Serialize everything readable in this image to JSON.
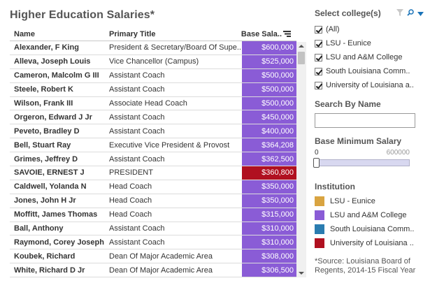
{
  "title": "Higher Education Salaries*",
  "table": {
    "headers": {
      "name": "Name",
      "title": "Primary Title",
      "salary": "Base Sala.."
    },
    "rows": [
      {
        "name": "Alexander, F King",
        "title": "President & Secretary/Board Of Supe..",
        "salary": "$600,000",
        "color": "#8a5cd6"
      },
      {
        "name": "Alleva, Joseph Louis",
        "title": "Vice Chancellor (Campus)",
        "salary": "$525,000",
        "color": "#8a5cd6"
      },
      {
        "name": "Cameron, Malcolm G III",
        "title": "Assistant Coach",
        "salary": "$500,000",
        "color": "#8a5cd6"
      },
      {
        "name": "Steele, Robert K",
        "title": "Assistant Coach",
        "salary": "$500,000",
        "color": "#8a5cd6"
      },
      {
        "name": "Wilson, Frank  III",
        "title": "Associate Head Coach",
        "salary": "$500,000",
        "color": "#8a5cd6"
      },
      {
        "name": "Orgeron, Edward J Jr",
        "title": "Assistant Coach",
        "salary": "$450,000",
        "color": "#8a5cd6"
      },
      {
        "name": "Peveto, Bradley D",
        "title": "Assistant Coach",
        "salary": "$400,000",
        "color": "#8a5cd6"
      },
      {
        "name": "Bell, Stuart Ray",
        "title": "Executive Vice President & Provost",
        "salary": "$364,208",
        "color": "#8a5cd6"
      },
      {
        "name": "Grimes, Jeffrey D",
        "title": "Assistant Coach",
        "salary": "$362,500",
        "color": "#8a5cd6"
      },
      {
        "name": "SAVOIE, ERNEST J",
        "title": "PRESIDENT",
        "salary": "$360,800",
        "color": "#b01020"
      },
      {
        "name": "Caldwell, Yolanda N",
        "title": "Head Coach",
        "salary": "$350,000",
        "color": "#8a5cd6"
      },
      {
        "name": "Jones, John H Jr",
        "title": "Head Coach",
        "salary": "$350,000",
        "color": "#8a5cd6"
      },
      {
        "name": "Moffitt, James Thomas",
        "title": "Head Coach",
        "salary": "$315,000",
        "color": "#8a5cd6"
      },
      {
        "name": "Ball, Anthony",
        "title": "Assistant Coach",
        "salary": "$310,000",
        "color": "#8a5cd6"
      },
      {
        "name": "Raymond, Corey Joseph",
        "title": "Assistant Coach",
        "salary": "$310,000",
        "color": "#8a5cd6"
      },
      {
        "name": "Koubek, Richard",
        "title": "Dean Of Major Academic Area",
        "salary": "$308,000",
        "color": "#8a5cd6"
      },
      {
        "name": "White, Richard D Jr",
        "title": "Dean Of Major Academic Area",
        "salary": "$306,500",
        "color": "#8a5cd6"
      }
    ]
  },
  "filter": {
    "title": "Select college(s)",
    "items": [
      "(All)",
      "LSU - Eunice",
      "LSU and A&M College",
      "South Louisiana Comm..",
      "University of Louisiana a.."
    ]
  },
  "search": {
    "title": "Search By Name",
    "placeholder": ""
  },
  "range": {
    "title": "Base Minimum Salary",
    "min_label": "0",
    "max_label": "600000",
    "value": 0
  },
  "legend": {
    "title": "Institution",
    "items": [
      {
        "label": "LSU - Eunice",
        "color": "#d9a441"
      },
      {
        "label": "LSU and A&M College",
        "color": "#8a5cd6"
      },
      {
        "label": "South Louisiana Comm..",
        "color": "#2a7cb0"
      },
      {
        "label": "University of Louisiana ..",
        "color": "#b01020"
      }
    ]
  },
  "source": "*Source: Louisiana Board of Regents, 2014-15 Fiscal Year",
  "icons": {
    "filter_clear": "funnel-clear-icon",
    "search": "search-icon",
    "menu": "dropdown-arrow-icon",
    "sort": "sort-descending-icon"
  }
}
